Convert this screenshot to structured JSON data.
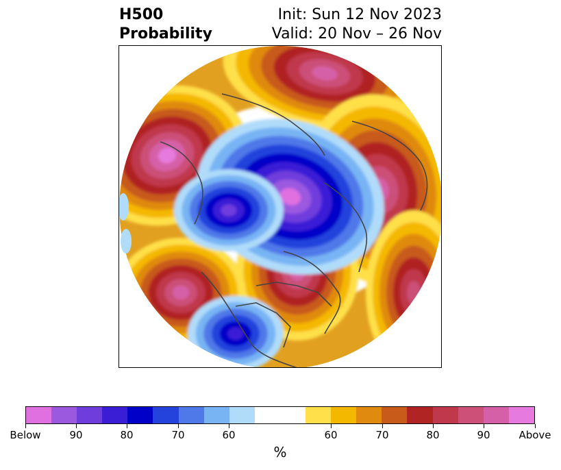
{
  "title": {
    "left_line1": "H500",
    "left_line2": "Probability",
    "right_line1": "Init: Sun 12 Nov 2023",
    "right_line2": "Valid: 20 Nov – 26 Nov"
  },
  "map": {
    "projection": "north-polar stereographic",
    "field": "H500 probability",
    "blob_names": [
      "above-gulf-of-alaska",
      "above-north-atlantic-ne-pacific",
      "above-scandinavia",
      "above-hudson-bay",
      "above-north-pacific-west",
      "below-arctic-basin",
      "below-east-siberia",
      "below-southwest-us",
      "above-east-asia"
    ]
  },
  "colorbar": {
    "colors": [
      "#e070e0",
      "#9b59e0",
      "#6f3ddc",
      "#3a1ed6",
      "#0000c8",
      "#2442dc",
      "#4f78e8",
      "#78b4f4",
      "#b0dcfa",
      "#ffffff",
      "#ffffff",
      "#ffe04a",
      "#f5b800",
      "#e08a10",
      "#c85a1a",
      "#b02424",
      "#c0384c",
      "#cc5078",
      "#d660a8",
      "#e67ade"
    ],
    "tick_labels": [
      "Below",
      "90",
      "80",
      "70",
      "60",
      "60",
      "70",
      "80",
      "90",
      "Above"
    ],
    "unit": "%"
  }
}
